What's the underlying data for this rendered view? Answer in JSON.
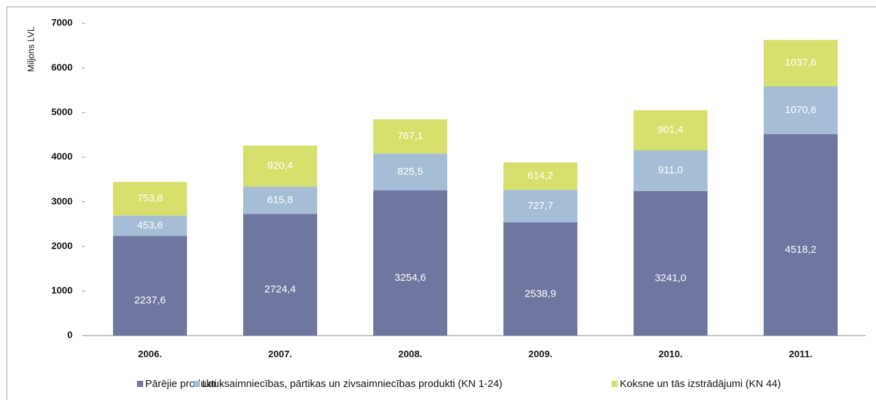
{
  "chart_data": {
    "type": "stacked_bar",
    "y_axis_label": "Miljons LVL",
    "categories": [
      "2006.",
      "2007.",
      "2008.",
      "2009.",
      "2010.",
      "2011."
    ],
    "series": [
      {
        "name": "Pārējie produkti",
        "color": "#6f76a0",
        "values": [
          2237.6,
          2724.4,
          3254.6,
          2538.9,
          3241.0,
          4518.2
        ],
        "value_labels": [
          "2237,6",
          "2724,4",
          "3254,6",
          "2538,9",
          "3241,0",
          "4518,2"
        ]
      },
      {
        "name": "Lauksaimniecības, pārtikas un zivsaimniecības produkti (KN 1-24)",
        "color": "#a5bed6",
        "values": [
          453.6,
          615.8,
          825.5,
          727.7,
          911.0,
          1070.6
        ],
        "value_labels": [
          "453,6",
          "615,8",
          "825,5",
          "727,7",
          "911,0",
          "1070,6"
        ]
      },
      {
        "name": "Koksne un tās izstrādājumi (KN 44)",
        "color": "#d7e06c",
        "values": [
          753.8,
          920.4,
          767.1,
          614.2,
          901.4,
          1037.6
        ],
        "value_labels": [
          "753,8",
          "920,4",
          "767,1",
          "614,2",
          "901,4",
          "1037,6"
        ]
      }
    ],
    "ylim": [
      0,
      7000
    ],
    "yticks": [
      0,
      1000,
      2000,
      3000,
      4000,
      5000,
      6000,
      7000
    ],
    "legend": "bottom"
  }
}
